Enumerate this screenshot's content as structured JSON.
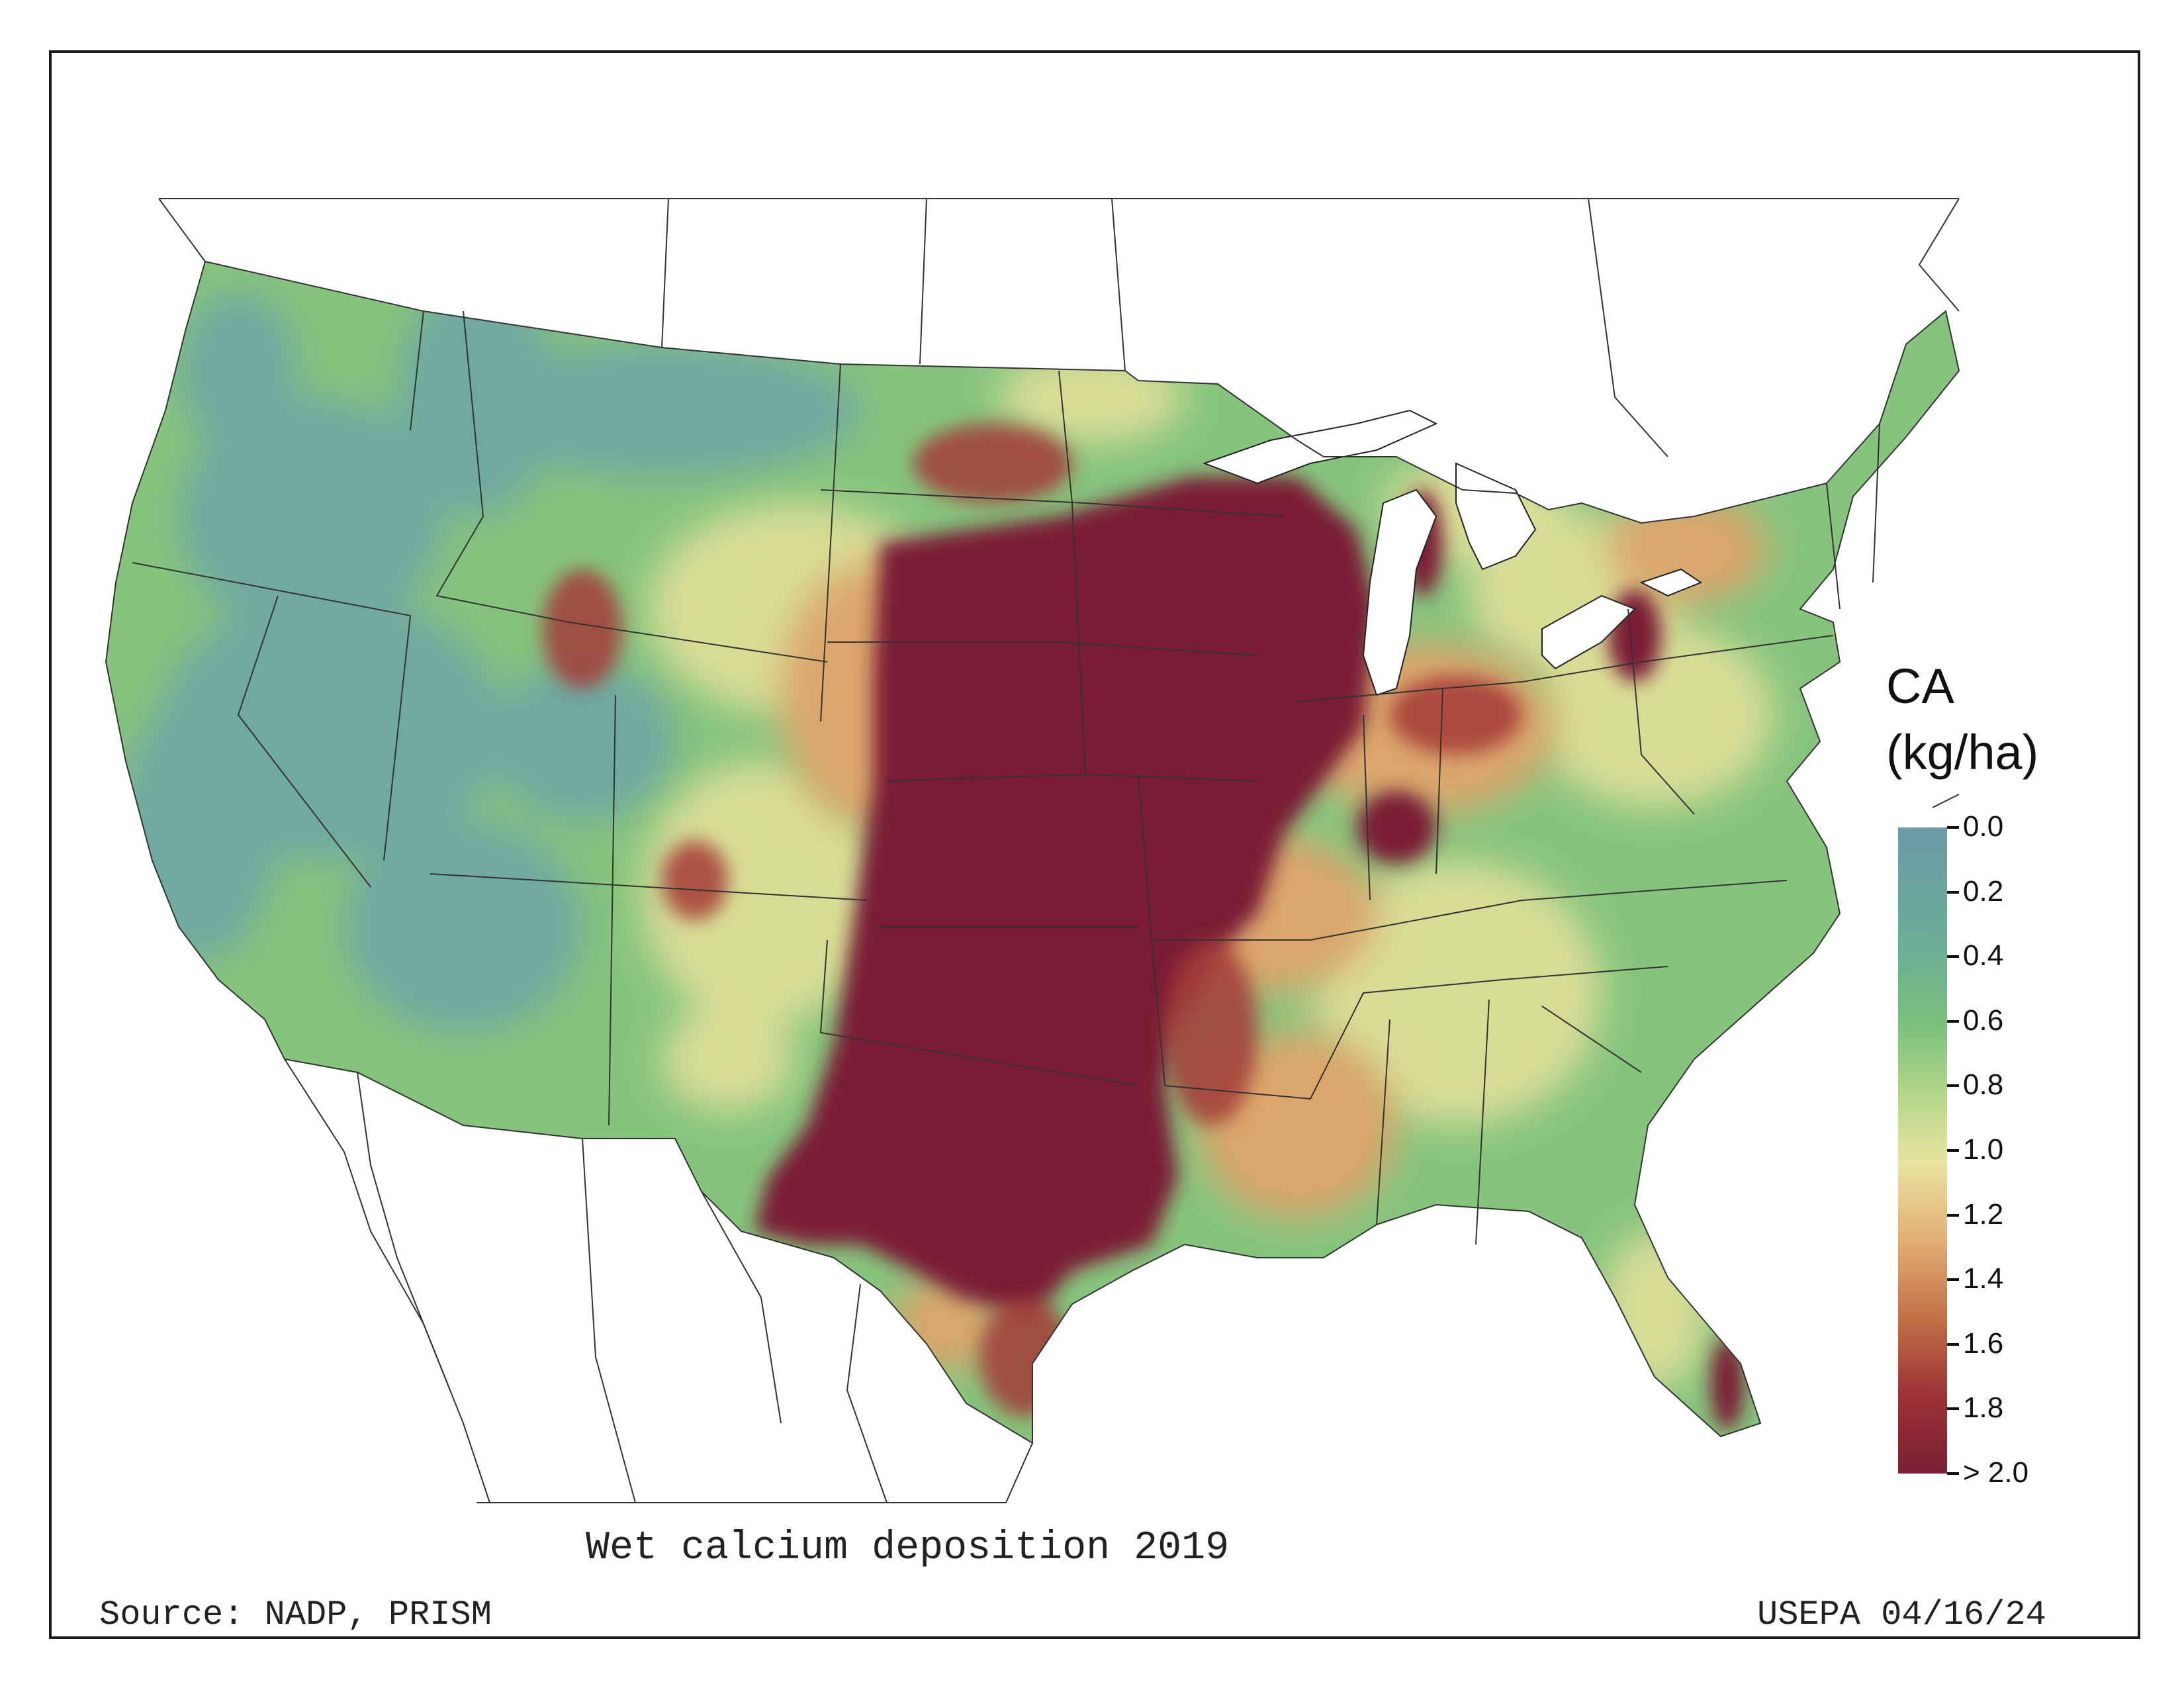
{
  "map": {
    "title": "Wet calcium deposition 2019",
    "source": "Source: NADP, PRISM",
    "agency": "USEPA 04/16/24",
    "legend": {
      "title_line1": "CA",
      "title_line2": "(kg/ha)",
      "ticks": [
        "0.0",
        "0.2",
        "0.4",
        "0.6",
        "0.8",
        "1.0",
        "1.2",
        "1.4",
        "1.6",
        "1.8",
        "> 2.0"
      ],
      "colors": {
        "low": "#6b9aa6",
        "low_mid": "#78c07c",
        "mid": "#e8e3a1",
        "high_mid": "#c27047",
        "high": "#7a1f34"
      }
    }
  }
}
